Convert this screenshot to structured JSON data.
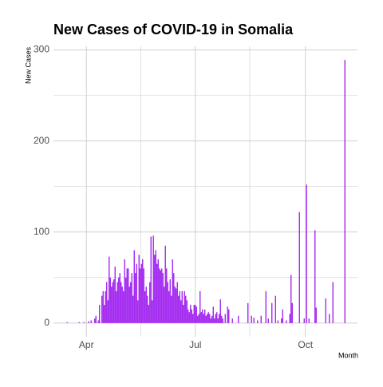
{
  "chart_data": {
    "type": "bar",
    "title": "New Cases of COVID-19 in Somalia",
    "y_label": "New  Cases",
    "x_label": "Month",
    "categories": [
      null,
      null,
      null,
      null,
      null,
      null,
      null,
      null,
      null,
      null,
      null,
      null,
      null,
      null,
      null,
      null,
      null,
      null,
      null,
      null,
      null,
      null,
      null,
      null,
      null,
      null,
      null,
      "Apr",
      null,
      null,
      null,
      null,
      null,
      null,
      null,
      null,
      null,
      null,
      null,
      null,
      null,
      null,
      null,
      null,
      null,
      null,
      null,
      null,
      null,
      null,
      null,
      null,
      null,
      null,
      null,
      null,
      null,
      null,
      null,
      null,
      null,
      null,
      null,
      null,
      null,
      null,
      null,
      null,
      null,
      null,
      null,
      null,
      null,
      null,
      null,
      null,
      null,
      null,
      null,
      null,
      null,
      null,
      null,
      null,
      null,
      null,
      null,
      null,
      null,
      null,
      null,
      null,
      null,
      null,
      null,
      null,
      null,
      null,
      null,
      null,
      null,
      null,
      null,
      null,
      null,
      null,
      null,
      null,
      null,
      null,
      null,
      null,
      null,
      null,
      null,
      null,
      null,
      null,
      "Jul",
      null,
      null,
      null,
      null,
      null,
      null,
      null,
      null,
      null,
      null,
      null,
      null,
      null,
      null,
      null,
      null,
      null,
      null,
      null,
      null,
      null,
      null,
      null,
      null,
      null,
      null,
      null,
      null,
      null,
      null,
      null,
      null,
      null,
      null,
      null,
      null,
      null,
      null,
      null,
      null,
      null,
      null,
      null,
      null,
      null,
      null,
      null,
      null,
      null,
      null,
      null,
      null,
      null,
      null,
      null,
      null,
      null,
      null,
      null,
      null,
      null,
      null,
      null,
      null,
      null,
      null,
      null,
      null,
      null,
      null,
      null,
      null,
      null,
      null,
      null,
      null,
      null,
      null,
      null,
      null,
      null,
      null,
      null,
      null,
      null,
      null,
      null,
      null,
      null,
      null,
      null,
      "Oct",
      null,
      null,
      null,
      null,
      null,
      null,
      null,
      null,
      null,
      null,
      null,
      null,
      null,
      null,
      null,
      null,
      null,
      null,
      null,
      null,
      null,
      null,
      null,
      null,
      null,
      null,
      null,
      null,
      null,
      null,
      null,
      null,
      null,
      null,
      null,
      null,
      null,
      null,
      null,
      null,
      null,
      null,
      null
    ],
    "values": [
      0,
      0,
      0,
      0,
      0,
      0,
      0,
      0,
      0,
      0,
      0,
      1,
      0,
      0,
      0,
      0,
      0,
      0,
      0,
      0,
      0,
      1,
      0,
      0,
      0,
      1,
      0,
      0,
      0,
      2,
      0,
      3,
      0,
      0,
      5,
      8,
      0,
      3,
      20,
      0,
      30,
      35,
      20,
      35,
      45,
      25,
      73,
      50,
      40,
      45,
      48,
      62,
      35,
      45,
      50,
      55,
      45,
      40,
      35,
      70,
      50,
      60,
      60,
      40,
      45,
      55,
      30,
      80,
      55,
      65,
      25,
      75,
      60,
      65,
      70,
      60,
      35,
      40,
      30,
      20,
      45,
      95,
      25,
      96,
      75,
      80,
      65,
      70,
      60,
      58,
      60,
      55,
      40,
      85,
      60,
      45,
      35,
      48,
      30,
      70,
      55,
      40,
      38,
      45,
      30,
      35,
      25,
      35,
      20,
      35,
      30,
      25,
      15,
      12,
      20,
      15,
      10,
      20,
      20,
      18,
      8,
      10,
      35,
      12,
      15,
      10,
      15,
      8,
      10,
      12,
      10,
      5,
      8,
      18,
      5,
      10,
      12,
      5,
      10,
      26,
      8,
      5,
      0,
      10,
      0,
      18,
      15,
      0,
      0,
      5,
      0,
      0,
      0,
      0,
      8,
      0,
      0,
      0,
      0,
      0,
      0,
      0,
      22,
      0,
      0,
      8,
      0,
      6,
      0,
      0,
      3,
      0,
      0,
      8,
      0,
      0,
      0,
      35,
      0,
      5,
      0,
      0,
      22,
      0,
      0,
      30,
      0,
      3,
      0,
      0,
      5,
      15,
      0,
      0,
      3,
      0,
      0,
      10,
      53,
      22,
      0,
      0,
      0,
      0,
      0,
      122,
      0,
      0,
      0,
      5,
      0,
      152,
      0,
      5,
      0,
      0,
      0,
      0,
      102,
      17,
      0,
      0,
      0,
      0,
      0,
      0,
      0,
      27,
      0,
      0,
      10,
      0,
      0,
      45,
      0,
      0,
      0,
      0,
      0,
      0,
      0,
      0,
      0,
      289,
      0,
      0,
      0,
      0,
      0,
      0,
      0,
      0,
      0,
      0
    ],
    "color": "#a020f0",
    "ylim": [
      -15,
      304
    ],
    "yticks": [
      0,
      100,
      200,
      300
    ],
    "grid": true
  }
}
